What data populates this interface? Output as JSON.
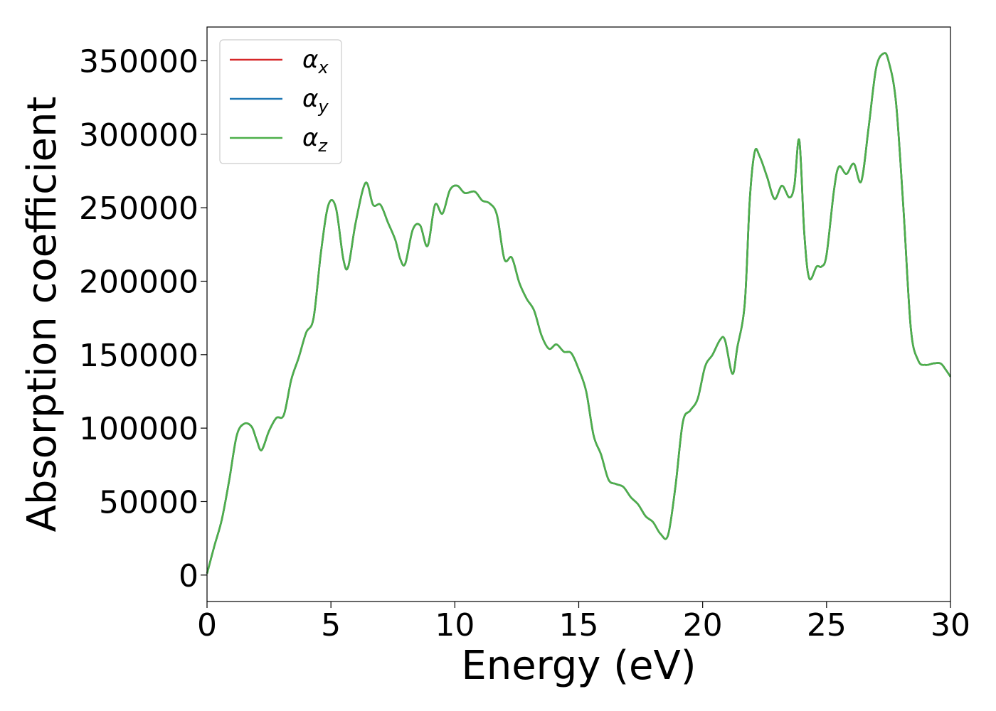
{
  "chart_data": {
    "type": "line",
    "xlabel": "Energy (eV)",
    "ylabel": "Absorption coefficient",
    "xlim": [
      0,
      30
    ],
    "ylim": [
      -18000,
      373000
    ],
    "x_ticks": [
      0,
      5,
      10,
      15,
      20,
      25,
      30
    ],
    "y_ticks": [
      0,
      50000,
      100000,
      150000,
      200000,
      250000,
      300000,
      350000
    ],
    "grid": false,
    "legend": {
      "placement": "top-left"
    },
    "series": [
      {
        "name": "α_x",
        "symbol": "α",
        "subscript": "x",
        "color": "#d62728"
      },
      {
        "name": "α_y",
        "symbol": "α",
        "subscript": "y",
        "color": "#1f77b4"
      },
      {
        "name": "α_z",
        "symbol": "α",
        "subscript": "z",
        "color": "#4daf4a"
      }
    ],
    "x": [
      0,
      0.3,
      0.6,
      0.9,
      1.2,
      1.5,
      1.8,
      2.0,
      2.2,
      2.5,
      2.8,
      3.1,
      3.4,
      3.7,
      4.0,
      4.3,
      4.6,
      4.9,
      5.2,
      5.5,
      5.7,
      6.0,
      6.4,
      6.7,
      7.0,
      7.3,
      7.6,
      7.8,
      8.0,
      8.3,
      8.6,
      8.9,
      9.2,
      9.5,
      9.8,
      10.1,
      10.4,
      10.8,
      11.1,
      11.4,
      11.7,
      12.0,
      12.3,
      12.6,
      12.9,
      13.2,
      13.5,
      13.8,
      14.1,
      14.4,
      14.7,
      15.0,
      15.3,
      15.6,
      15.9,
      16.2,
      16.5,
      16.8,
      17.1,
      17.4,
      17.7,
      18.0,
      18.3,
      18.6,
      18.9,
      19.2,
      19.5,
      19.8,
      20.1,
      20.4,
      20.7,
      20.9,
      21.2,
      21.4,
      21.7,
      21.9,
      22.1,
      22.3,
      22.6,
      22.9,
      23.2,
      23.5,
      23.7,
      23.9,
      24.1,
      24.3,
      24.6,
      24.8,
      25.0,
      25.3,
      25.5,
      25.8,
      26.1,
      26.4,
      26.7,
      27.0,
      27.3,
      27.5,
      27.8,
      28.1,
      28.4,
      28.7,
      29.0,
      29.3,
      29.6,
      29.8,
      30.0
    ],
    "values": [
      1000,
      20000,
      38000,
      65000,
      95000,
      103000,
      101000,
      92000,
      85000,
      98000,
      107000,
      109000,
      133000,
      148000,
      165000,
      175000,
      220000,
      252000,
      250000,
      215000,
      210000,
      240000,
      267000,
      252000,
      252000,
      240000,
      228000,
      215000,
      212000,
      235000,
      238000,
      224000,
      252000,
      246000,
      262000,
      265000,
      260000,
      261000,
      255000,
      253000,
      245000,
      215000,
      216000,
      199000,
      188000,
      180000,
      163000,
      154000,
      157000,
      152000,
      151000,
      140000,
      125000,
      95000,
      82000,
      65000,
      62000,
      60000,
      53000,
      48000,
      40000,
      36000,
      28000,
      27000,
      60000,
      104000,
      112000,
      120000,
      142000,
      150000,
      160000,
      160000,
      137000,
      155000,
      185000,
      255000,
      288000,
      285000,
      271000,
      256000,
      265000,
      257000,
      265000,
      296000,
      233000,
      202000,
      210000,
      210000,
      218000,
      262000,
      278000,
      273000,
      280000,
      268000,
      305000,
      345000,
      355000,
      350000,
      322000,
      250000,
      168000,
      146000,
      143000,
      144000,
      144000,
      140000,
      135000
    ]
  }
}
